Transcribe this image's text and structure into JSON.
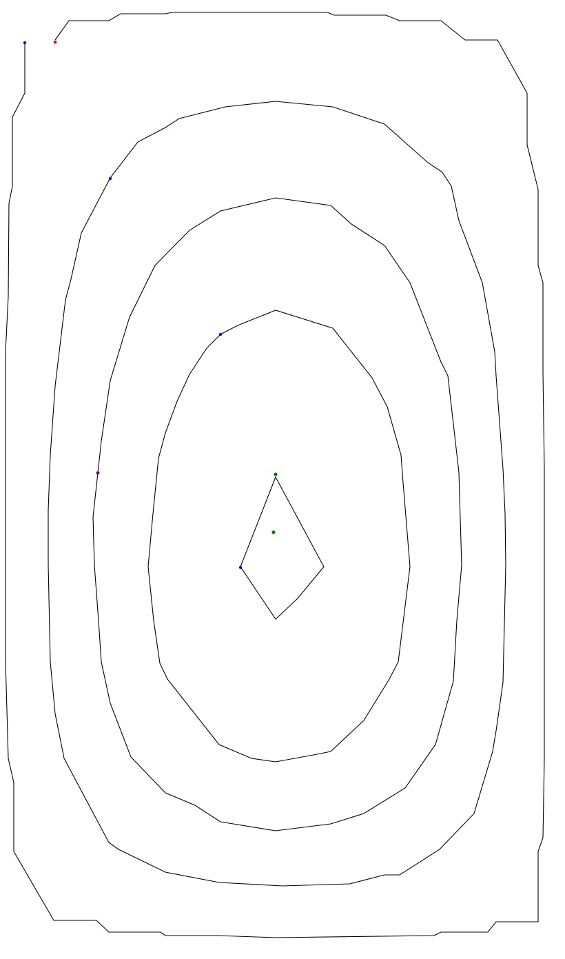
{
  "diagram": {
    "type": "contour-plot",
    "line_color": "#000000",
    "background_color": "#ffffff",
    "contour_count": 5,
    "markers": [
      {
        "id": "blue-marker-top-left",
        "color": "#0000ff"
      },
      {
        "id": "red-marker-top-left",
        "color": "#ff0000"
      },
      {
        "id": "blue-marker-contour-2",
        "color": "#0000ff"
      },
      {
        "id": "blue-marker-contour-4",
        "color": "#0000ff"
      },
      {
        "id": "purple-marker-contour-2",
        "color": "#800080"
      },
      {
        "id": "green-marker-peak-top",
        "color": "#008000"
      },
      {
        "id": "green-marker-peak-center",
        "color": "#008000"
      },
      {
        "id": "blue-marker-inner",
        "color": "#0000ff"
      }
    ]
  }
}
